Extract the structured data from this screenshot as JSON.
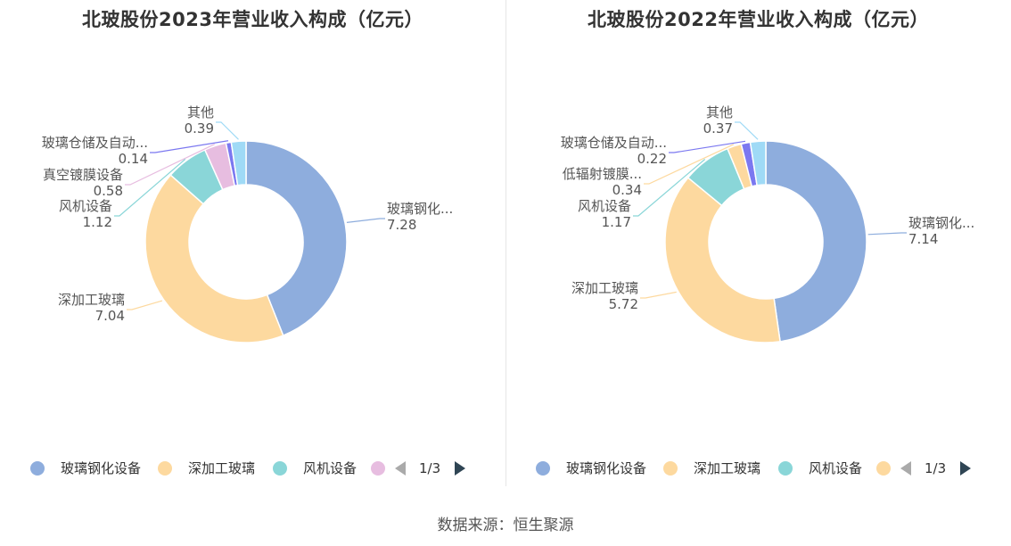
{
  "source": "数据来源：恒生聚源",
  "legend_page": "1/3",
  "chart_data": [
    {
      "type": "pie",
      "title": "北玻股份2023年营业收入构成（亿元）",
      "categories": [
        "玻璃钢化设备",
        "深加工玻璃",
        "风机设备",
        "真空镀膜设备",
        "玻璃仓储及自动化设备",
        "其他"
      ],
      "label_names": [
        "玻璃钢化...",
        "深加工玻璃",
        "风机设备",
        "真空镀膜设备",
        "玻璃仓储及自动...",
        "其他"
      ],
      "values": [
        7.28,
        7.04,
        1.12,
        0.58,
        0.14,
        0.39
      ],
      "colors": [
        "#8eaddd",
        "#fdd99f",
        "#8ad6d8",
        "#e7bde0",
        "#7b78f0",
        "#9fdaf6"
      ],
      "legend_visible": [
        "玻璃钢化设备",
        "深加工玻璃",
        "风机设备"
      ],
      "legend_placement": "bottom"
    },
    {
      "type": "pie",
      "title": "北玻股份2022年营业收入构成（亿元）",
      "categories": [
        "玻璃钢化设备",
        "深加工玻璃",
        "风机设备",
        "低辐射镀膜设备",
        "玻璃仓储及自动化设备",
        "其他"
      ],
      "label_names": [
        "玻璃钢化...",
        "深加工玻璃",
        "风机设备",
        "低辐射镀膜...",
        "玻璃仓储及自动...",
        "其他"
      ],
      "values": [
        7.14,
        5.72,
        1.17,
        0.34,
        0.22,
        0.37
      ],
      "colors": [
        "#8eaddd",
        "#fdd99f",
        "#8ad6d8",
        "#fdd99f",
        "#7b78f0",
        "#9fdaf6"
      ],
      "legend_visible": [
        "玻璃钢化设备",
        "深加工玻璃",
        "风机设备"
      ],
      "legend_placement": "bottom"
    }
  ]
}
